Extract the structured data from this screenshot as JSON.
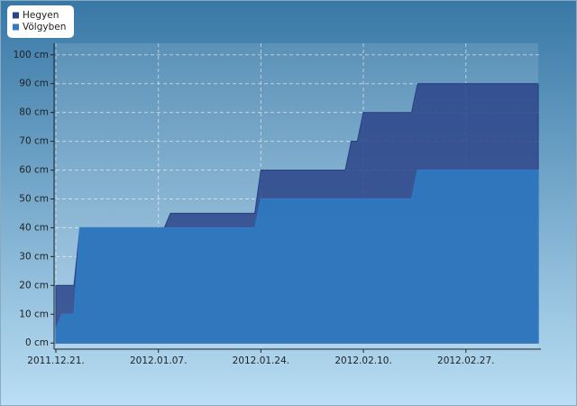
{
  "chart_data": {
    "type": "area",
    "x": [
      "2011.12.21.",
      "2011.12.22.",
      "2011.12.24.",
      "2011.12.25.",
      "2012.01.08.",
      "2012.01.09.",
      "2012.01.23.",
      "2012.01.24.",
      "2012.02.07.",
      "2012.02.08.",
      "2012.02.09.",
      "2012.02.10.",
      "2012.02.18.",
      "2012.02.19.",
      "2012.03.10."
    ],
    "series": [
      {
        "name": "Hegyen",
        "color": "#2b4488",
        "values": [
          20,
          20,
          20,
          40,
          40,
          45,
          45,
          60,
          60,
          70,
          70,
          80,
          80,
          90,
          90
        ]
      },
      {
        "name": "Völgyben",
        "color": "#2f7cc4",
        "values": [
          5,
          10,
          10,
          40,
          40,
          40,
          40,
          50,
          50,
          50,
          50,
          50,
          50,
          60,
          60
        ]
      }
    ],
    "xlim": [
      "2011.12.21.",
      "2012.03.10."
    ],
    "xticks": [
      "2011.12.21.",
      "2012.01.07.",
      "2012.01.24.",
      "2012.02.10.",
      "2012.02.27."
    ],
    "ylim": [
      -1.5,
      104
    ],
    "yticks": [
      {
        "value": 0,
        "label": "0 cm"
      },
      {
        "value": 10,
        "label": "10 cm"
      },
      {
        "value": 20,
        "label": "20 cm"
      },
      {
        "value": 30,
        "label": "30 cm"
      },
      {
        "value": 40,
        "label": "40 cm"
      },
      {
        "value": 50,
        "label": "50 cm"
      },
      {
        "value": 60,
        "label": "60 cm"
      },
      {
        "value": 70,
        "label": "70 cm"
      },
      {
        "value": 80,
        "label": "80 cm"
      },
      {
        "value": 90,
        "label": "90 cm"
      },
      {
        "value": 100,
        "label": "100 cm"
      }
    ],
    "grid": true,
    "legend": "top-left"
  }
}
